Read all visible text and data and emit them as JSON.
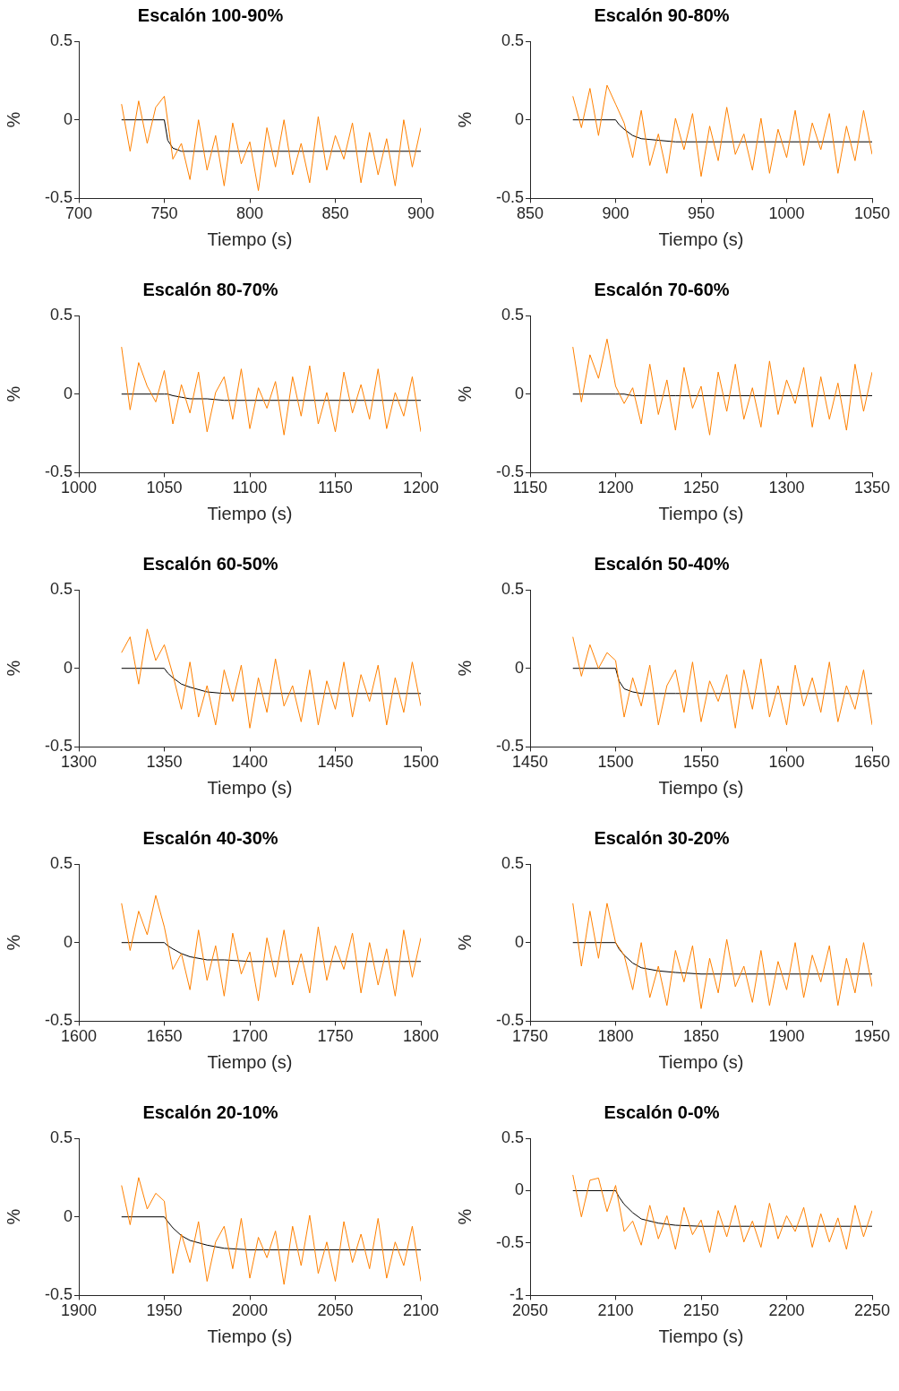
{
  "chart_data": [
    {
      "type": "line",
      "title": "Escalón 100-90%",
      "xlabel": "Tiempo (s)",
      "ylabel": "%",
      "xlim": [
        700,
        900
      ],
      "xticks": [
        700,
        750,
        800,
        850,
        900
      ],
      "ylim": [
        -0.5,
        0.5
      ],
      "yticks": [
        -0.5,
        0,
        0.5
      ],
      "grid": false,
      "legend": false,
      "marker": "none",
      "line_style": "solid",
      "x": [
        725,
        730,
        735,
        740,
        745,
        750,
        755,
        760,
        765,
        770,
        775,
        780,
        785,
        790,
        795,
        800,
        805,
        810,
        815,
        820,
        825,
        830,
        835,
        840,
        845,
        850,
        855,
        860,
        865,
        870,
        875,
        880,
        885,
        890,
        895,
        900
      ],
      "series": [
        {
          "color": "#ff8000",
          "values": [
            0.1,
            -0.2,
            0.12,
            -0.15,
            0.08,
            0.15,
            -0.25,
            -0.15,
            -0.38,
            0,
            -0.32,
            -0.1,
            -0.42,
            -0.02,
            -0.28,
            -0.14,
            -0.45,
            -0.05,
            -0.3,
            0,
            -0.35,
            -0.15,
            -0.4,
            0.02,
            -0.32,
            -0.1,
            -0.25,
            -0.02,
            -0.4,
            -0.08,
            -0.35,
            -0.12,
            -0.42,
            0,
            -0.3,
            -0.05
          ]
        },
        {
          "color": "#000000",
          "x": [
            725,
            750,
            752,
            755,
            760,
            765,
            775,
            785,
            800,
            900
          ],
          "values": [
            0,
            0,
            -0.13,
            -0.18,
            -0.2,
            -0.2,
            -0.2,
            -0.2,
            -0.2,
            -0.2
          ]
        }
      ]
    },
    {
      "type": "line",
      "title": "Escalón 90-80%",
      "xlabel": "Tiempo (s)",
      "ylabel": "%",
      "xlim": [
        850,
        1050
      ],
      "xticks": [
        850,
        900,
        950,
        1000,
        1050
      ],
      "ylim": [
        -0.5,
        0.5
      ],
      "yticks": [
        -0.5,
        0,
        0.5
      ],
      "grid": false,
      "legend": false,
      "marker": "none",
      "line_style": "solid",
      "x": [
        875,
        880,
        885,
        890,
        895,
        900,
        905,
        910,
        915,
        920,
        925,
        930,
        935,
        940,
        945,
        950,
        955,
        960,
        965,
        970,
        975,
        980,
        985,
        990,
        995,
        1000,
        1005,
        1010,
        1015,
        1020,
        1025,
        1030,
        1035,
        1040,
        1045,
        1050
      ],
      "series": [
        {
          "color": "#ff8000",
          "values": [
            0.15,
            -0.05,
            0.2,
            -0.1,
            0.22,
            0.1,
            -0.02,
            -0.24,
            0.06,
            -0.29,
            -0.09,
            -0.34,
            0.01,
            -0.19,
            0.04,
            -0.36,
            -0.04,
            -0.26,
            0.08,
            -0.22,
            -0.09,
            -0.32,
            0.01,
            -0.34,
            -0.06,
            -0.24,
            0.06,
            -0.29,
            -0.02,
            -0.19,
            0.04,
            -0.34,
            -0.04,
            -0.26,
            0.06,
            -0.22
          ]
        },
        {
          "color": "#000000",
          "x": [
            875,
            900,
            902,
            905,
            910,
            915,
            925,
            935,
            950,
            1050
          ],
          "values": [
            0,
            0,
            -0.03,
            -0.06,
            -0.1,
            -0.12,
            -0.13,
            -0.14,
            -0.14,
            -0.14
          ]
        }
      ]
    },
    {
      "type": "line",
      "title": "Escalón 80-70%",
      "xlabel": "Tiempo (s)",
      "ylabel": "%",
      "xlim": [
        1000,
        1200
      ],
      "xticks": [
        1000,
        1050,
        1100,
        1150,
        1200
      ],
      "ylim": [
        -0.5,
        0.5
      ],
      "yticks": [
        -0.5,
        0,
        0.5
      ],
      "grid": false,
      "legend": false,
      "marker": "none",
      "line_style": "solid",
      "x": [
        1025,
        1030,
        1035,
        1040,
        1045,
        1050,
        1055,
        1060,
        1065,
        1070,
        1075,
        1080,
        1085,
        1090,
        1095,
        1100,
        1105,
        1110,
        1115,
        1120,
        1125,
        1130,
        1135,
        1140,
        1145,
        1150,
        1155,
        1160,
        1165,
        1170,
        1175,
        1180,
        1185,
        1190,
        1195,
        1200
      ],
      "series": [
        {
          "color": "#ff8000",
          "values": [
            0.3,
            -0.1,
            0.2,
            0.05,
            -0.05,
            0.15,
            -0.19,
            0.06,
            -0.12,
            0.14,
            -0.24,
            0.01,
            0.11,
            -0.16,
            0.16,
            -0.22,
            0.04,
            -0.09,
            0.08,
            -0.26,
            0.11,
            -0.14,
            0.18,
            -0.19,
            0.01,
            -0.24,
            0.14,
            -0.12,
            0.06,
            -0.16,
            0.16,
            -0.22,
            0.01,
            -0.14,
            0.11,
            -0.24
          ]
        },
        {
          "color": "#000000",
          "x": [
            1025,
            1050,
            1052,
            1055,
            1060,
            1065,
            1075,
            1085,
            1100,
            1200
          ],
          "values": [
            0,
            0,
            0,
            -0.01,
            -0.02,
            -0.03,
            -0.03,
            -0.04,
            -0.04,
            -0.04
          ]
        }
      ]
    },
    {
      "type": "line",
      "title": "Escalón 70-60%",
      "xlabel": "Tiempo (s)",
      "ylabel": "%",
      "xlim": [
        1150,
        1350
      ],
      "xticks": [
        1150,
        1200,
        1250,
        1300,
        1350
      ],
      "ylim": [
        -0.5,
        0.5
      ],
      "yticks": [
        -0.5,
        0,
        0.5
      ],
      "grid": false,
      "legend": false,
      "marker": "none",
      "line_style": "solid",
      "x": [
        1175,
        1180,
        1185,
        1190,
        1195,
        1200,
        1205,
        1210,
        1215,
        1220,
        1225,
        1230,
        1235,
        1240,
        1245,
        1250,
        1255,
        1260,
        1265,
        1270,
        1275,
        1280,
        1285,
        1290,
        1295,
        1300,
        1305,
        1310,
        1315,
        1320,
        1325,
        1330,
        1335,
        1340,
        1345,
        1350
      ],
      "series": [
        {
          "color": "#ff8000",
          "values": [
            0.3,
            -0.05,
            0.25,
            0.1,
            0.35,
            0.05,
            -0.06,
            0.04,
            -0.19,
            0.19,
            -0.13,
            0.09,
            -0.23,
            0.17,
            -0.09,
            0.05,
            -0.26,
            0.14,
            -0.11,
            0.19,
            -0.16,
            0.04,
            -0.21,
            0.21,
            -0.13,
            0.09,
            -0.06,
            0.17,
            -0.21,
            0.11,
            -0.16,
            0.07,
            -0.23,
            0.19,
            -0.11,
            0.14
          ]
        },
        {
          "color": "#000000",
          "x": [
            1175,
            1200,
            1202,
            1205,
            1210,
            1215,
            1225,
            1235,
            1250,
            1350
          ],
          "values": [
            0,
            0,
            0,
            0,
            -0.01,
            -0.01,
            -0.01,
            -0.01,
            -0.01,
            -0.01
          ]
        }
      ]
    },
    {
      "type": "line",
      "title": "Escalón 60-50%",
      "xlabel": "Tiempo (s)",
      "ylabel": "%",
      "xlim": [
        1300,
        1500
      ],
      "xticks": [
        1300,
        1350,
        1400,
        1450,
        1500
      ],
      "ylim": [
        -0.5,
        0.5
      ],
      "yticks": [
        -0.5,
        0,
        0.5
      ],
      "grid": false,
      "legend": false,
      "marker": "none",
      "line_style": "solid",
      "x": [
        1325,
        1330,
        1335,
        1340,
        1345,
        1350,
        1355,
        1360,
        1365,
        1370,
        1375,
        1380,
        1385,
        1390,
        1395,
        1400,
        1405,
        1410,
        1415,
        1420,
        1425,
        1430,
        1435,
        1440,
        1445,
        1450,
        1455,
        1460,
        1465,
        1470,
        1475,
        1480,
        1485,
        1490,
        1495,
        1500
      ],
      "series": [
        {
          "color": "#ff8000",
          "values": [
            0.1,
            0.2,
            -0.1,
            0.25,
            0.05,
            0.15,
            -0.04,
            -0.26,
            0.04,
            -0.31,
            -0.11,
            -0.36,
            -0.01,
            -0.21,
            0.02,
            -0.38,
            -0.06,
            -0.28,
            0.06,
            -0.24,
            -0.11,
            -0.34,
            -0.01,
            -0.36,
            -0.08,
            -0.26,
            0.04,
            -0.31,
            -0.04,
            -0.21,
            0.02,
            -0.36,
            -0.06,
            -0.28,
            0.04,
            -0.24
          ]
        },
        {
          "color": "#000000",
          "x": [
            1325,
            1350,
            1352,
            1355,
            1360,
            1365,
            1375,
            1385,
            1400,
            1500
          ],
          "values": [
            0,
            0,
            -0.03,
            -0.06,
            -0.1,
            -0.12,
            -0.15,
            -0.16,
            -0.16,
            -0.16
          ]
        }
      ]
    },
    {
      "type": "line",
      "title": "Escalón 50-40%",
      "xlabel": "Tiempo (s)",
      "ylabel": "%",
      "xlim": [
        1450,
        1650
      ],
      "xticks": [
        1450,
        1500,
        1550,
        1600,
        1650
      ],
      "ylim": [
        -0.5,
        0.5
      ],
      "yticks": [
        -0.5,
        0,
        0.5
      ],
      "grid": false,
      "legend": false,
      "marker": "none",
      "line_style": "solid",
      "x": [
        1475,
        1480,
        1485,
        1490,
        1495,
        1500,
        1505,
        1510,
        1515,
        1520,
        1525,
        1530,
        1535,
        1540,
        1545,
        1550,
        1555,
        1560,
        1565,
        1570,
        1575,
        1580,
        1585,
        1590,
        1595,
        1600,
        1605,
        1610,
        1615,
        1620,
        1625,
        1630,
        1635,
        1640,
        1645,
        1650
      ],
      "series": [
        {
          "color": "#ff8000",
          "values": [
            0.2,
            -0.05,
            0.15,
            0,
            0.1,
            0.05,
            -0.31,
            -0.06,
            -0.24,
            0.02,
            -0.36,
            -0.11,
            -0.01,
            -0.28,
            0.04,
            -0.34,
            -0.08,
            -0.21,
            -0.04,
            -0.38,
            -0.01,
            -0.26,
            0.06,
            -0.31,
            -0.11,
            -0.36,
            0.02,
            -0.24,
            -0.06,
            -0.28,
            0.04,
            -0.34,
            -0.11,
            -0.26,
            -0.01,
            -0.36
          ]
        },
        {
          "color": "#000000",
          "x": [
            1475,
            1500,
            1502,
            1505,
            1510,
            1515,
            1525,
            1535,
            1550,
            1650
          ],
          "values": [
            0,
            0,
            -0.08,
            -0.13,
            -0.15,
            -0.16,
            -0.16,
            -0.16,
            -0.16,
            -0.16
          ]
        }
      ]
    },
    {
      "type": "line",
      "title": "Escalón 40-30%",
      "xlabel": "Tiempo (s)",
      "ylabel": "%",
      "xlim": [
        1600,
        1800
      ],
      "xticks": [
        1600,
        1650,
        1700,
        1750,
        1800
      ],
      "ylim": [
        -0.5,
        0.5
      ],
      "yticks": [
        -0.5,
        0,
        0.5
      ],
      "grid": false,
      "legend": false,
      "marker": "none",
      "line_style": "solid",
      "x": [
        1625,
        1630,
        1635,
        1640,
        1645,
        1650,
        1655,
        1660,
        1665,
        1670,
        1675,
        1680,
        1685,
        1690,
        1695,
        1700,
        1705,
        1710,
        1715,
        1720,
        1725,
        1730,
        1735,
        1740,
        1745,
        1750,
        1755,
        1760,
        1765,
        1770,
        1775,
        1780,
        1785,
        1790,
        1795,
        1800
      ],
      "series": [
        {
          "color": "#ff8000",
          "values": [
            0.25,
            -0.05,
            0.2,
            0.05,
            0.3,
            0.1,
            -0.17,
            -0.07,
            -0.3,
            0.08,
            -0.24,
            -0.02,
            -0.34,
            0.06,
            -0.2,
            -0.06,
            -0.37,
            0.03,
            -0.22,
            0.08,
            -0.27,
            -0.07,
            -0.32,
            0.1,
            -0.24,
            -0.02,
            -0.17,
            0.06,
            -0.32,
            0,
            -0.27,
            -0.04,
            -0.34,
            0.08,
            -0.22,
            0.03
          ]
        },
        {
          "color": "#000000",
          "x": [
            1625,
            1650,
            1652,
            1655,
            1660,
            1665,
            1675,
            1685,
            1700,
            1800
          ],
          "values": [
            0,
            0,
            -0.02,
            -0.04,
            -0.07,
            -0.09,
            -0.11,
            -0.11,
            -0.12,
            -0.12
          ]
        }
      ]
    },
    {
      "type": "line",
      "title": "Escalón 30-20%",
      "xlabel": "Tiempo (s)",
      "ylabel": "%",
      "xlim": [
        1750,
        1950
      ],
      "xticks": [
        1750,
        1800,
        1850,
        1900,
        1950
      ],
      "ylim": [
        -0.5,
        0.5
      ],
      "yticks": [
        -0.5,
        0,
        0.5
      ],
      "grid": false,
      "legend": false,
      "marker": "none",
      "line_style": "solid",
      "x": [
        1775,
        1780,
        1785,
        1790,
        1795,
        1800,
        1805,
        1810,
        1815,
        1820,
        1825,
        1830,
        1835,
        1840,
        1845,
        1850,
        1855,
        1860,
        1865,
        1870,
        1875,
        1880,
        1885,
        1890,
        1895,
        1900,
        1905,
        1910,
        1915,
        1920,
        1925,
        1930,
        1935,
        1940,
        1945,
        1950
      ],
      "series": [
        {
          "color": "#ff8000",
          "values": [
            0.25,
            -0.15,
            0.2,
            -0.1,
            0.25,
            0,
            -0.08,
            -0.3,
            0,
            -0.35,
            -0.15,
            -0.4,
            -0.05,
            -0.25,
            -0.02,
            -0.42,
            -0.1,
            -0.32,
            0.02,
            -0.28,
            -0.15,
            -0.38,
            -0.05,
            -0.4,
            -0.12,
            -0.3,
            0,
            -0.35,
            -0.08,
            -0.25,
            -0.02,
            -0.4,
            -0.1,
            -0.32,
            0,
            -0.28
          ]
        },
        {
          "color": "#000000",
          "x": [
            1775,
            1800,
            1802,
            1805,
            1810,
            1815,
            1825,
            1835,
            1850,
            1950
          ],
          "values": [
            0,
            0,
            -0.04,
            -0.08,
            -0.13,
            -0.16,
            -0.18,
            -0.19,
            -0.2,
            -0.2
          ]
        }
      ]
    },
    {
      "type": "line",
      "title": "Escalón 20-10%",
      "xlabel": "Tiempo (s)",
      "ylabel": "%",
      "xlim": [
        1900,
        2100
      ],
      "xticks": [
        1900,
        1950,
        2000,
        2050,
        2100
      ],
      "ylim": [
        -0.5,
        0.5
      ],
      "yticks": [
        -0.5,
        0,
        0.5
      ],
      "grid": false,
      "legend": false,
      "marker": "none",
      "line_style": "solid",
      "x": [
        1925,
        1930,
        1935,
        1940,
        1945,
        1950,
        1955,
        1960,
        1965,
        1970,
        1975,
        1980,
        1985,
        1990,
        1995,
        2000,
        2005,
        2010,
        2015,
        2020,
        2025,
        2030,
        2035,
        2040,
        2045,
        2050,
        2055,
        2060,
        2065,
        2070,
        2075,
        2080,
        2085,
        2090,
        2095,
        2100
      ],
      "series": [
        {
          "color": "#ff8000",
          "values": [
            0.2,
            -0.05,
            0.25,
            0.05,
            0.15,
            0.1,
            -0.36,
            -0.11,
            -0.29,
            -0.03,
            -0.41,
            -0.16,
            -0.06,
            -0.33,
            -0.01,
            -0.39,
            -0.13,
            -0.26,
            -0.09,
            -0.43,
            -0.06,
            -0.31,
            0.01,
            -0.36,
            -0.16,
            -0.41,
            -0.03,
            -0.29,
            -0.11,
            -0.33,
            -0.01,
            -0.39,
            -0.16,
            -0.31,
            -0.06,
            -0.41
          ]
        },
        {
          "color": "#000000",
          "x": [
            1925,
            1950,
            1952,
            1955,
            1960,
            1965,
            1975,
            1985,
            2000,
            2100
          ],
          "values": [
            0,
            0,
            -0.03,
            -0.07,
            -0.12,
            -0.15,
            -0.18,
            -0.2,
            -0.21,
            -0.21
          ]
        }
      ]
    },
    {
      "type": "line",
      "title": "Escalón 0-0%",
      "xlabel": "Tiempo (s)",
      "ylabel": "%",
      "xlim": [
        2050,
        2250
      ],
      "xticks": [
        2050,
        2100,
        2150,
        2200,
        2250
      ],
      "ylim": [
        -1,
        0.5
      ],
      "yticks": [
        -1,
        -0.5,
        0,
        0.5
      ],
      "grid": false,
      "legend": false,
      "marker": "none",
      "line_style": "solid",
      "x": [
        2075,
        2080,
        2085,
        2090,
        2095,
        2100,
        2105,
        2110,
        2115,
        2120,
        2125,
        2130,
        2135,
        2140,
        2145,
        2150,
        2155,
        2160,
        2165,
        2170,
        2175,
        2180,
        2185,
        2190,
        2195,
        2200,
        2205,
        2210,
        2215,
        2220,
        2225,
        2230,
        2235,
        2240,
        2245,
        2250
      ],
      "series": [
        {
          "color": "#ff8000",
          "values": [
            0.15,
            -0.25,
            0.1,
            0.12,
            -0.2,
            0.05,
            -0.39,
            -0.29,
            -0.52,
            -0.14,
            -0.46,
            -0.24,
            -0.56,
            -0.16,
            -0.42,
            -0.28,
            -0.59,
            -0.19,
            -0.44,
            -0.14,
            -0.49,
            -0.29,
            -0.54,
            -0.12,
            -0.46,
            -0.24,
            -0.39,
            -0.16,
            -0.54,
            -0.22,
            -0.49,
            -0.26,
            -0.56,
            -0.14,
            -0.44,
            -0.19
          ]
        },
        {
          "color": "#000000",
          "x": [
            2075,
            2100,
            2102,
            2105,
            2110,
            2115,
            2125,
            2135,
            2150,
            2250
          ],
          "values": [
            0,
            0,
            -0.06,
            -0.13,
            -0.21,
            -0.27,
            -0.31,
            -0.33,
            -0.34,
            -0.34
          ]
        }
      ]
    }
  ]
}
